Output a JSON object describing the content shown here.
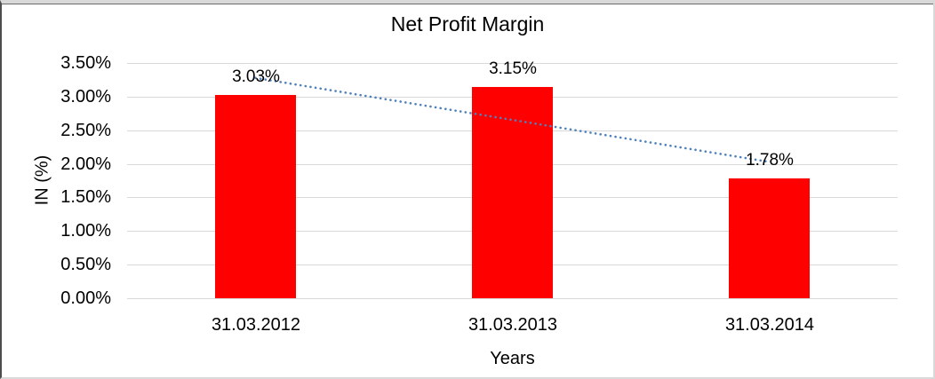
{
  "chart_data": {
    "type": "bar",
    "title": "Net Profit Margin",
    "xlabel": "Years",
    "ylabel": "IN (%)",
    "categories": [
      "31.03.2012",
      "31.03.2013",
      "31.03.2014"
    ],
    "values": [
      3.03,
      3.15,
      1.78
    ],
    "data_labels": [
      "3.03%",
      "3.15%",
      "1.78%"
    ],
    "ylim": [
      0,
      3.5
    ],
    "y_ticks": [
      "0.00%",
      "0.50%",
      "1.00%",
      "1.50%",
      "2.00%",
      "2.50%",
      "3.00%",
      "3.50%"
    ],
    "grid": true,
    "legend": "none",
    "bar_color": "#FF0000",
    "gridline_color": "#D9D9D9",
    "text_color": "#000000",
    "trendline": {
      "type": "linear",
      "style": "dotted",
      "color": "#4F81BD"
    }
  }
}
